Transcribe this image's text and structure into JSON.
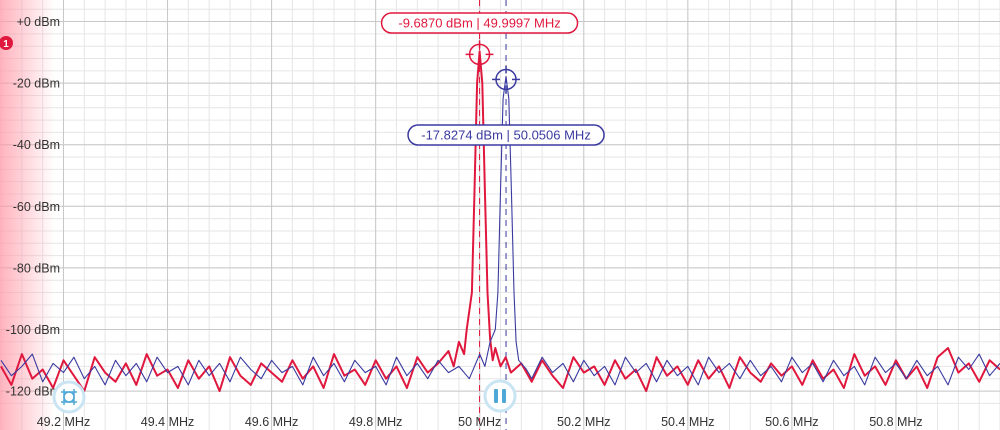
{
  "colors": {
    "series_a": "#e0183e",
    "series_b": "#3a3aa0",
    "grid_major": "#c8c8c8",
    "grid_minor": "#e6e6e6",
    "left_fade": "#ff9aa8"
  },
  "badge": {
    "text": "1"
  },
  "controls": {
    "grid_button_icon": "grid-crosshair-icon",
    "pause_button_icon": "pause-icon"
  },
  "chart_data": {
    "type": "line",
    "title": "",
    "xlabel": "",
    "ylabel": "",
    "x_unit": "MHz",
    "y_unit": "dBm",
    "xlim": [
      49.078,
      51.0
    ],
    "ylim": [
      -125.5,
      7.0
    ],
    "grid": true,
    "x_ticks": [
      {
        "value": 49.2,
        "label": "49.2 MHz"
      },
      {
        "value": 49.4,
        "label": "49.4 MHz"
      },
      {
        "value": 49.6,
        "label": "49.6 MHz"
      },
      {
        "value": 49.8,
        "label": "49.8 MHz"
      },
      {
        "value": 50.0,
        "label": "50 MHz"
      },
      {
        "value": 50.2,
        "label": "50.2 MHz"
      },
      {
        "value": 50.4,
        "label": "50.4 MHz"
      },
      {
        "value": 50.6,
        "label": "50.6 MHz"
      },
      {
        "value": 50.8,
        "label": "50.8 MHz"
      }
    ],
    "y_ticks": [
      {
        "value": 0,
        "label": "+0 dBm"
      },
      {
        "value": -20,
        "label": "-20 dBm"
      },
      {
        "value": -40,
        "label": "-40 dBm"
      },
      {
        "value": -60,
        "label": "-60 dBm"
      },
      {
        "value": -80,
        "label": "-80 dBm"
      },
      {
        "value": -100,
        "label": "-100 dBm"
      },
      {
        "value": -120,
        "label": "-120 dBm"
      }
    ],
    "series": [
      {
        "color": "#e0183e",
        "peak": {
          "x": 49.9997,
          "y": -9.687
        },
        "points": [
          [
            49.08,
            -112
          ],
          [
            49.1,
            -118
          ],
          [
            49.12,
            -108
          ],
          [
            49.14,
            -116
          ],
          [
            49.16,
            -113
          ],
          [
            49.18,
            -119
          ],
          [
            49.2,
            -110
          ],
          [
            49.22,
            -115
          ],
          [
            49.24,
            -120
          ],
          [
            49.26,
            -109
          ],
          [
            49.28,
            -114
          ],
          [
            49.3,
            -117
          ],
          [
            49.32,
            -111
          ],
          [
            49.34,
            -118
          ],
          [
            49.36,
            -108
          ],
          [
            49.38,
            -115
          ],
          [
            49.4,
            -113
          ],
          [
            49.42,
            -119
          ],
          [
            49.44,
            -110
          ],
          [
            49.46,
            -116
          ],
          [
            49.48,
            -112
          ],
          [
            49.5,
            -120
          ],
          [
            49.52,
            -109
          ],
          [
            49.54,
            -115
          ],
          [
            49.56,
            -118
          ],
          [
            49.58,
            -111
          ],
          [
            49.6,
            -114
          ],
          [
            49.62,
            -117
          ],
          [
            49.64,
            -110
          ],
          [
            49.66,
            -116
          ],
          [
            49.68,
            -112
          ],
          [
            49.7,
            -119
          ],
          [
            49.72,
            -108
          ],
          [
            49.74,
            -115
          ],
          [
            49.76,
            -113
          ],
          [
            49.78,
            -118
          ],
          [
            49.8,
            -110
          ],
          [
            49.82,
            -116
          ],
          [
            49.84,
            -112
          ],
          [
            49.86,
            -119
          ],
          [
            49.88,
            -109
          ],
          [
            49.9,
            -114
          ],
          [
            49.92,
            -111
          ],
          [
            49.94,
            -107
          ],
          [
            49.95,
            -112
          ],
          [
            49.96,
            -104
          ],
          [
            49.97,
            -108
          ],
          [
            49.975,
            -100
          ],
          [
            49.985,
            -88
          ],
          [
            49.99,
            -55
          ],
          [
            49.995,
            -20
          ],
          [
            49.9997,
            -9.687
          ],
          [
            50.005,
            -20
          ],
          [
            50.01,
            -55
          ],
          [
            50.015,
            -88
          ],
          [
            50.02,
            -103
          ],
          [
            50.025,
            -110
          ],
          [
            50.03,
            -106
          ],
          [
            50.04,
            -112
          ],
          [
            50.05,
            -109
          ],
          [
            50.06,
            -114
          ],
          [
            50.08,
            -111
          ],
          [
            50.1,
            -117
          ],
          [
            50.12,
            -110
          ],
          [
            50.14,
            -115
          ],
          [
            50.16,
            -119
          ],
          [
            50.18,
            -109
          ],
          [
            50.2,
            -114
          ],
          [
            50.22,
            -112
          ],
          [
            50.24,
            -118
          ],
          [
            50.26,
            -110
          ],
          [
            50.28,
            -116
          ],
          [
            50.3,
            -113
          ],
          [
            50.32,
            -120
          ],
          [
            50.34,
            -109
          ],
          [
            50.36,
            -115
          ],
          [
            50.38,
            -112
          ],
          [
            50.4,
            -118
          ],
          [
            50.42,
            -110
          ],
          [
            50.44,
            -116
          ],
          [
            50.46,
            -112
          ],
          [
            50.48,
            -119
          ],
          [
            50.5,
            -109
          ],
          [
            50.52,
            -114
          ],
          [
            50.54,
            -117
          ],
          [
            50.56,
            -111
          ],
          [
            50.58,
            -115
          ],
          [
            50.6,
            -112
          ],
          [
            50.62,
            -118
          ],
          [
            50.64,
            -110
          ],
          [
            50.66,
            -116
          ],
          [
            50.68,
            -113
          ],
          [
            50.7,
            -119
          ],
          [
            50.72,
            -108
          ],
          [
            50.74,
            -115
          ],
          [
            50.76,
            -112
          ],
          [
            50.78,
            -118
          ],
          [
            50.8,
            -110
          ],
          [
            50.82,
            -116
          ],
          [
            50.84,
            -112
          ],
          [
            50.86,
            -119
          ],
          [
            50.88,
            -109
          ],
          [
            50.9,
            -106
          ],
          [
            50.92,
            -114
          ],
          [
            50.94,
            -111
          ],
          [
            50.96,
            -117
          ],
          [
            50.98,
            -110
          ],
          [
            51.0,
            -113
          ]
        ]
      },
      {
        "color": "#3a3aa0",
        "peak": {
          "x": 50.0506,
          "y": -17.8274
        },
        "points": [
          [
            49.08,
            -110
          ],
          [
            49.1,
            -115
          ],
          [
            49.12,
            -112
          ],
          [
            49.14,
            -108
          ],
          [
            49.16,
            -117
          ],
          [
            49.18,
            -111
          ],
          [
            49.2,
            -114
          ],
          [
            49.22,
            -109
          ],
          [
            49.24,
            -116
          ],
          [
            49.26,
            -112
          ],
          [
            49.28,
            -118
          ],
          [
            49.3,
            -110
          ],
          [
            49.32,
            -115
          ],
          [
            49.34,
            -111
          ],
          [
            49.36,
            -117
          ],
          [
            49.38,
            -109
          ],
          [
            49.4,
            -114
          ],
          [
            49.42,
            -112
          ],
          [
            49.44,
            -118
          ],
          [
            49.46,
            -110
          ],
          [
            49.48,
            -115
          ],
          [
            49.5,
            -111
          ],
          [
            49.52,
            -117
          ],
          [
            49.54,
            -109
          ],
          [
            49.56,
            -113
          ],
          [
            49.58,
            -116
          ],
          [
            49.6,
            -110
          ],
          [
            49.62,
            -114
          ],
          [
            49.64,
            -112
          ],
          [
            49.66,
            -118
          ],
          [
            49.68,
            -109
          ],
          [
            49.7,
            -115
          ],
          [
            49.72,
            -111
          ],
          [
            49.74,
            -117
          ],
          [
            49.76,
            -110
          ],
          [
            49.78,
            -114
          ],
          [
            49.8,
            -112
          ],
          [
            49.82,
            -118
          ],
          [
            49.84,
            -109
          ],
          [
            49.86,
            -115
          ],
          [
            49.88,
            -111
          ],
          [
            49.9,
            -116
          ],
          [
            49.92,
            -110
          ],
          [
            49.94,
            -114
          ],
          [
            49.96,
            -112
          ],
          [
            49.98,
            -116
          ],
          [
            50.0,
            -108
          ],
          [
            50.01,
            -112
          ],
          [
            50.02,
            -104
          ],
          [
            50.03,
            -100
          ],
          [
            50.035,
            -88
          ],
          [
            50.04,
            -55
          ],
          [
            50.045,
            -25
          ],
          [
            50.0506,
            -17.8274
          ],
          [
            50.056,
            -25
          ],
          [
            50.061,
            -55
          ],
          [
            50.066,
            -88
          ],
          [
            50.07,
            -104
          ],
          [
            50.075,
            -110
          ],
          [
            50.09,
            -113
          ],
          [
            50.1,
            -116
          ],
          [
            50.12,
            -109
          ],
          [
            50.14,
            -114
          ],
          [
            50.16,
            -111
          ],
          [
            50.18,
            -117
          ],
          [
            50.2,
            -110
          ],
          [
            50.22,
            -115
          ],
          [
            50.24,
            -112
          ],
          [
            50.26,
            -118
          ],
          [
            50.28,
            -109
          ],
          [
            50.3,
            -114
          ],
          [
            50.32,
            -111
          ],
          [
            50.34,
            -117
          ],
          [
            50.36,
            -110
          ],
          [
            50.38,
            -115
          ],
          [
            50.4,
            -112
          ],
          [
            50.42,
            -118
          ],
          [
            50.44,
            -109
          ],
          [
            50.46,
            -114
          ],
          [
            50.48,
            -111
          ],
          [
            50.5,
            -116
          ],
          [
            50.52,
            -110
          ],
          [
            50.54,
            -115
          ],
          [
            50.56,
            -112
          ],
          [
            50.58,
            -117
          ],
          [
            50.6,
            -109
          ],
          [
            50.62,
            -114
          ],
          [
            50.64,
            -111
          ],
          [
            50.66,
            -117
          ],
          [
            50.68,
            -110
          ],
          [
            50.7,
            -115
          ],
          [
            50.72,
            -112
          ],
          [
            50.74,
            -118
          ],
          [
            50.76,
            -109
          ],
          [
            50.78,
            -114
          ],
          [
            50.8,
            -111
          ],
          [
            50.82,
            -116
          ],
          [
            50.84,
            -110
          ],
          [
            50.86,
            -115
          ],
          [
            50.88,
            -112
          ],
          [
            50.9,
            -118
          ],
          [
            50.92,
            -109
          ],
          [
            50.94,
            -113
          ],
          [
            50.96,
            -108
          ],
          [
            50.98,
            -115
          ],
          [
            51.0,
            -111
          ]
        ]
      }
    ],
    "markers": [
      {
        "series": 0,
        "label": "-9.6870 dBm  |  49.9997 MHz",
        "label_position": "above"
      },
      {
        "series": 1,
        "label": "-17.8274 dBm  |  50.0506 MHz",
        "label_position": "below"
      }
    ]
  }
}
